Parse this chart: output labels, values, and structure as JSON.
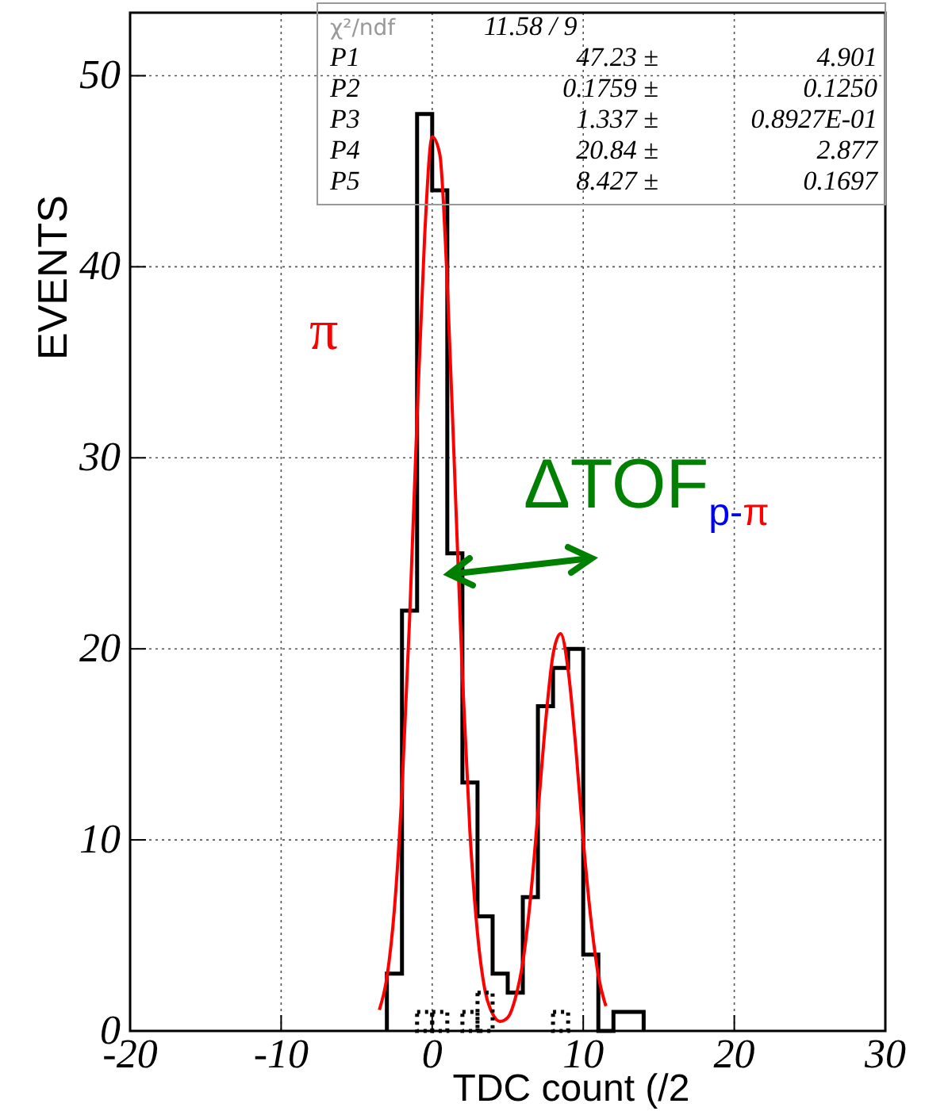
{
  "chart_data": {
    "type": "histogram",
    "xlabel": "TDC count (/2",
    "ylabel": "EVENTS",
    "xlim": [
      -20,
      30
    ],
    "ylim": [
      0,
      53.3
    ],
    "xticks": [
      -20,
      -10,
      0,
      10,
      20,
      30
    ],
    "yticks": [
      0,
      10,
      20,
      30,
      40,
      50
    ],
    "grid": true,
    "series": [
      {
        "color": "#000000",
        "line_style": "solid",
        "bins": [
          -3,
          -2,
          -1,
          0,
          1,
          2,
          3,
          4,
          5,
          6,
          7,
          8,
          9,
          10,
          11,
          12,
          13,
          14
        ],
        "values": [
          3,
          22,
          48,
          44,
          25,
          13,
          6,
          3,
          2,
          7,
          17,
          19,
          20,
          4,
          0,
          1,
          1
        ]
      },
      {
        "color": "#000000",
        "line_style": "dotted",
        "bins": [
          -3,
          -2,
          -1,
          0,
          1,
          2,
          3,
          4,
          5,
          6,
          7,
          8,
          9,
          10,
          11,
          12,
          13,
          14
        ],
        "values": [
          0,
          0,
          1,
          1,
          0,
          1,
          2,
          0,
          0,
          0,
          0,
          1,
          0,
          0,
          0,
          0,
          0
        ]
      },
      {
        "type": "line",
        "color": "#ff0000",
        "line_style": "solid",
        "x": [
          -3.5,
          -3,
          -2.5,
          -2,
          -1.5,
          -1,
          -0.5,
          0,
          0.5,
          1,
          1.5,
          2,
          2.5,
          3,
          3.5,
          4,
          4.5,
          5,
          5.5,
          6,
          6.5,
          7,
          7.5,
          8,
          8.5,
          9,
          9.5,
          10,
          10.5,
          11,
          11.5
        ],
        "values": [
          1.1,
          2.8,
          6.4,
          12.6,
          21.5,
          32.1,
          41.6,
          46.8,
          45.9,
          39.1,
          28.9,
          18.6,
          10.4,
          5.1,
          2.1,
          0.9,
          0.5,
          0.7,
          1.7,
          3.6,
          6.9,
          11.4,
          16.1,
          19.7,
          20.8,
          18.9,
          14.9,
          10.0,
          5.9,
          2.9,
          1.3
        ]
      }
    ],
    "annotations": [
      "χ²/ndf",
      "11.58",
      "/",
      "9",
      "P1",
      "47.23 ±",
      "4.901",
      "P2",
      "0.1759 ±",
      "0.1250",
      "P3",
      "1.337 ±",
      "0.8927E-01",
      "P4",
      "20.84 ±",
      "2.877",
      "P5",
      "8.427 ±",
      "0.1697",
      "π",
      "ΔTOF$_{p-π}$"
    ]
  }
}
